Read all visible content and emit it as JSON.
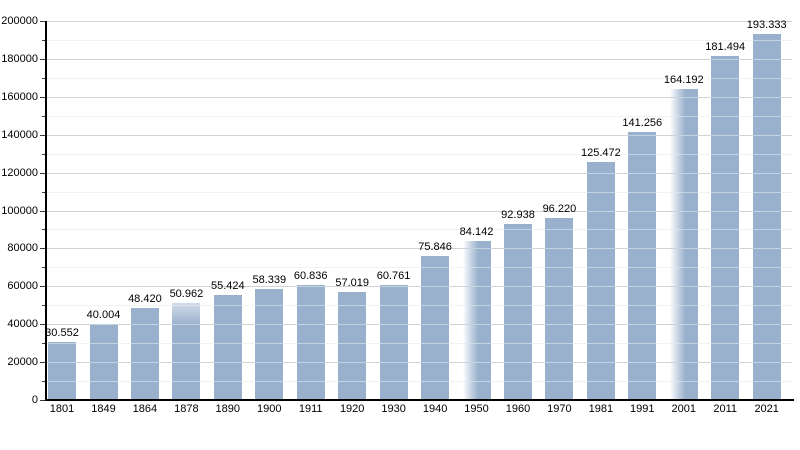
{
  "chart_data": {
    "type": "bar",
    "title": "",
    "xlabel": "",
    "ylabel": "",
    "categories": [
      "1801",
      "1849",
      "1864",
      "1878",
      "1890",
      "1900",
      "1911",
      "1920",
      "1930",
      "1940",
      "1950",
      "1960",
      "1970",
      "1981",
      "1991",
      "2001",
      "2011",
      "2021"
    ],
    "values": [
      30552,
      40004,
      48420,
      50962,
      55424,
      58339,
      60836,
      57019,
      60761,
      75846,
      84142,
      92938,
      96220,
      125472,
      141256,
      164192,
      181494,
      193333
    ],
    "value_labels": [
      "30.552",
      "40.004",
      "48.420",
      "50.962",
      "55.424",
      "58.339",
      "60.836",
      "57.019",
      "60.761",
      "75.846",
      "84.142",
      "92.938",
      "96.220",
      "125.472",
      "141.256",
      "164.192",
      "181.494",
      "193.333"
    ],
    "ylim": [
      0,
      200000
    ],
    "y_major_step": 20000,
    "y_minor_step": 10000,
    "y_tick_labels": [
      "0",
      "20000",
      "40000",
      "60000",
      "80000",
      "100000",
      "120000",
      "140000",
      "160000",
      "180000",
      "200000"
    ],
    "grid": "on",
    "legend": "none",
    "bar_fades": {
      "1878": "top",
      "1950": "left",
      "2001": "left"
    },
    "colors": {
      "bar": "#99b1cd",
      "bar_rgb": "153,177,205",
      "major_grid": "#b4b4b4",
      "minor_grid": "#e8e8e8",
      "axis": "#000000",
      "text": "#000000",
      "background": "#ffffff"
    }
  }
}
